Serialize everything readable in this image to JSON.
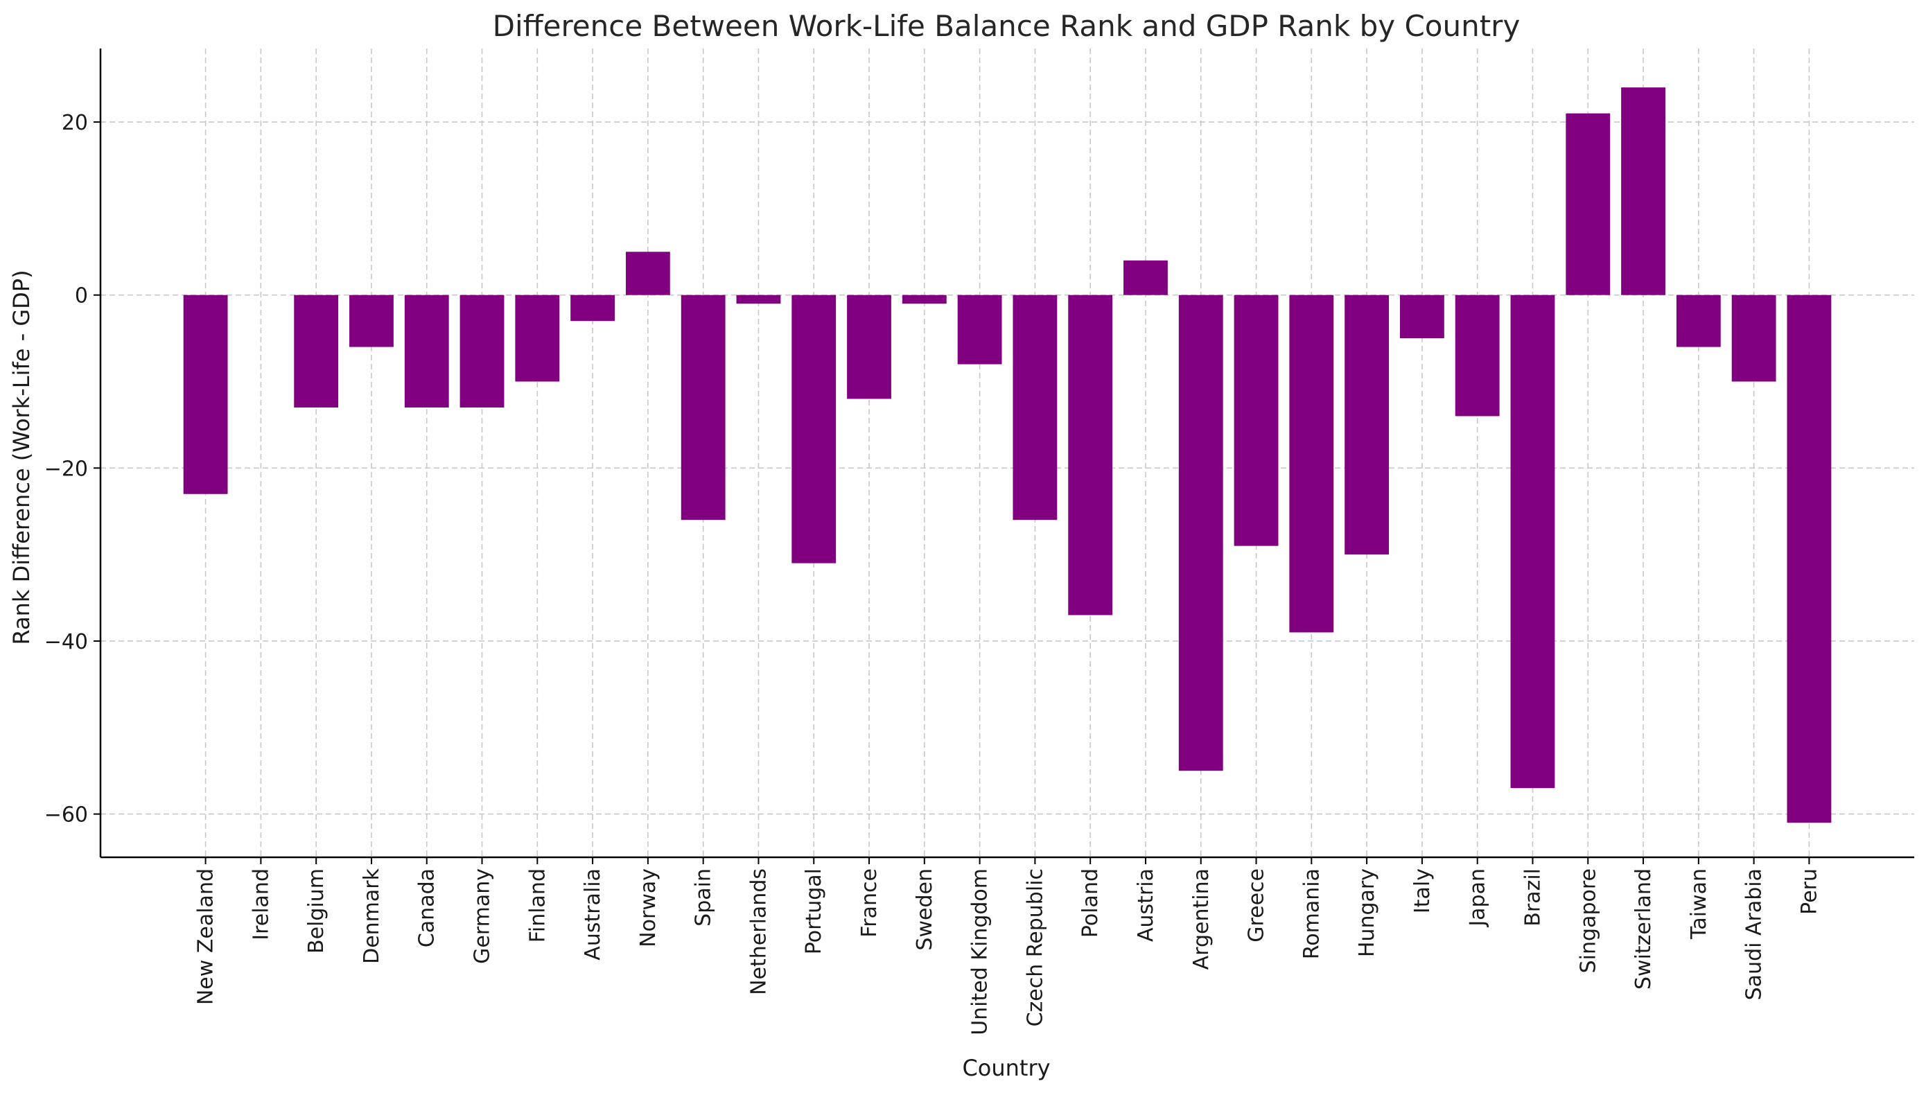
{
  "chart_data": {
    "type": "bar",
    "title": "Difference Between Work-Life Balance Rank and GDP Rank by Country",
    "xlabel": "Country",
    "ylabel": "Rank Difference (Work-Life - GDP)",
    "ylim": [
      -65,
      28.5
    ],
    "yticks": [
      -60,
      -40,
      -20,
      0,
      20
    ],
    "grid": true,
    "bar_color": "#800080",
    "categories": [
      "New Zealand",
      "Ireland",
      "Belgium",
      "Denmark",
      "Canada",
      "Germany",
      "Finland",
      "Australia",
      "Norway",
      "Spain",
      "Netherlands",
      "Portugal",
      "France",
      "Sweden",
      "United Kingdom",
      "Czech Republic",
      "Poland",
      "Austria",
      "Argentina",
      "Greece",
      "Romania",
      "Hungary",
      "Italy",
      "Japan",
      "Brazil",
      "Singapore",
      "Switzerland",
      "Taiwan",
      "Saudi Arabia",
      "Peru"
    ],
    "values": [
      -23,
      0,
      -13,
      -6,
      -13,
      -13,
      -10,
      -3,
      5,
      -26,
      -1,
      -31,
      -12,
      -1,
      -8,
      -26,
      -37,
      4,
      -55,
      -29,
      -39,
      -30,
      -5,
      -14,
      -57,
      21,
      24,
      -6,
      -10,
      -61
    ]
  }
}
